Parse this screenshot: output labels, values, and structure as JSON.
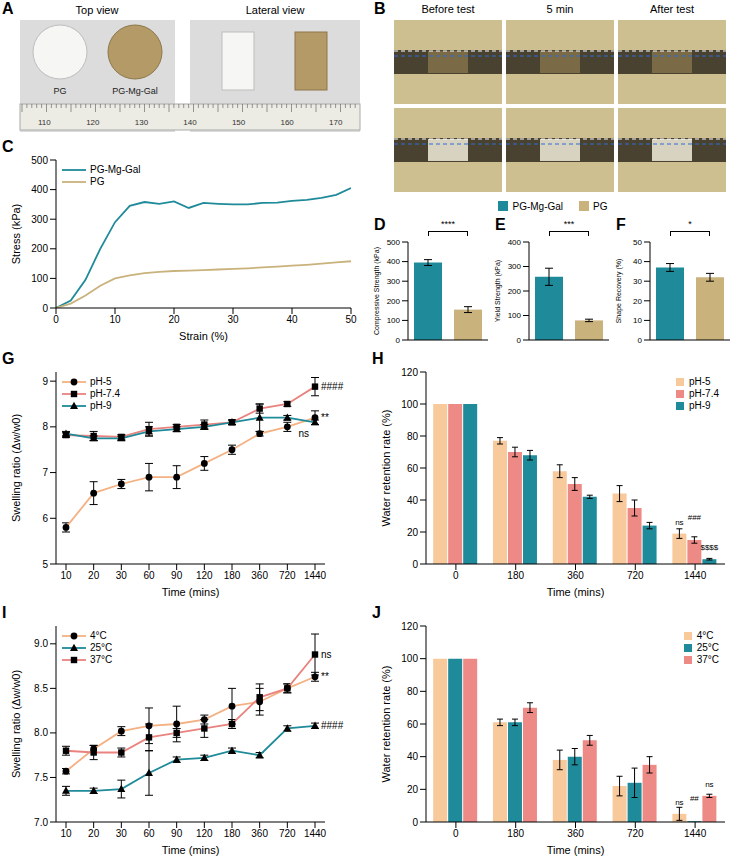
{
  "figure": {
    "photo_A": {
      "panel": "A",
      "views": [
        "Top view",
        "Lateral view"
      ],
      "samples": [
        "PG",
        "PG-Mg-Gal"
      ],
      "ruler": [
        110,
        120,
        130,
        140,
        150,
        160,
        170
      ]
    },
    "photo_B": {
      "panel": "B",
      "columns": [
        "Before test",
        "5 min",
        "After test"
      ]
    },
    "legend_entries": [
      {
        "name": "PG-Mg-Gal",
        "color": "#1f8a99"
      },
      {
        "name": "PG",
        "color": "#c9b27c"
      }
    ]
  },
  "chart_data": [
    {
      "panel": "C",
      "type": "line",
      "x_label": "Strain (%)",
      "y_label": "Stress (kPa)",
      "x": [
        0,
        2.5,
        5,
        7.5,
        10,
        12.5,
        15,
        17.5,
        20,
        22.5,
        25,
        27.5,
        30,
        32.5,
        35,
        37.5,
        40,
        42.5,
        45,
        47.5,
        50
      ],
      "series": [
        {
          "name": "PG-Mg-Gal",
          "color": "#1f8a99",
          "values": [
            0,
            25,
            95,
            200,
            290,
            345,
            358,
            352,
            360,
            338,
            355,
            352,
            350,
            350,
            355,
            356,
            362,
            365,
            372,
            382,
            405
          ]
        },
        {
          "name": "PG",
          "color": "#c9b27c",
          "values": [
            0,
            15,
            42,
            75,
            100,
            110,
            118,
            122,
            125,
            126,
            128,
            130,
            132,
            134,
            137,
            140,
            143,
            146,
            150,
            154,
            158
          ]
        }
      ],
      "xlim": [
        0,
        50
      ],
      "xticks": [
        0,
        10,
        20,
        30,
        40,
        50
      ],
      "ylim": [
        0,
        500
      ],
      "yticks": [
        0,
        100,
        200,
        300,
        400,
        500
      ],
      "legend": "upper left"
    },
    {
      "panel": "D",
      "type": "bar",
      "y_label": "Compressive Strength (kPa)",
      "categories": [
        null,
        null
      ],
      "values": [
        395,
        155
      ],
      "errors": [
        15,
        15
      ],
      "colors": [
        "#1f8a99",
        "#c9b27c"
      ],
      "ylim": [
        0,
        500
      ],
      "yticks": [
        0,
        100,
        200,
        300,
        400,
        500
      ],
      "tick_labels": "y",
      "annotations": [
        {
          "text": "****"
        }
      ]
    },
    {
      "panel": "E",
      "type": "bar",
      "y_label": "Yield Strength (kPa)",
      "categories": [
        null,
        null
      ],
      "values": [
        258,
        80
      ],
      "errors": [
        35,
        5
      ],
      "colors": [
        "#1f8a99",
        "#c9b27c"
      ],
      "ylim": [
        0,
        400
      ],
      "yticks": [
        0,
        100,
        200,
        300,
        400
      ],
      "tick_labels": "y",
      "annotations": [
        {
          "text": "***"
        }
      ]
    },
    {
      "panel": "F",
      "type": "bar",
      "y_label": "Shape Recovery (%)",
      "categories": [
        null,
        null
      ],
      "values": [
        37,
        32
      ],
      "errors": [
        2,
        2
      ],
      "colors": [
        "#1f8a99",
        "#c9b27c"
      ],
      "ylim": [
        0,
        50
      ],
      "yticks": [
        0,
        10,
        20,
        30,
        40,
        50
      ],
      "tick_labels": "y",
      "annotations": [
        {
          "text": "*"
        }
      ]
    },
    {
      "panel": "G",
      "type": "line",
      "x_label": "Time (mins)",
      "y_label": "Swelling ratio (Δw/w0)",
      "categories": [
        10,
        20,
        30,
        60,
        90,
        120,
        180,
        360,
        720,
        1440
      ],
      "series": [
        {
          "name": "pH-5",
          "color": "#f4b183",
          "marker": "circle",
          "values": [
            5.8,
            6.55,
            6.75,
            6.9,
            6.9,
            7.2,
            7.5,
            7.85,
            8.0,
            8.2
          ],
          "errors": [
            0.1,
            0.25,
            0.1,
            0.3,
            0.25,
            0.15,
            0.1,
            0.05,
            0.1,
            0.15
          ]
        },
        {
          "name": "pH-7.4",
          "color": "#e9837f",
          "marker": "square",
          "values": [
            7.82,
            7.8,
            7.78,
            7.95,
            8.0,
            8.05,
            8.1,
            8.4,
            8.5,
            8.88
          ],
          "errors": [
            0.05,
            0.1,
            0.05,
            0.15,
            0.05,
            0.1,
            0.05,
            0.1,
            0.05,
            0.2
          ]
        },
        {
          "name": "pH-9",
          "color": "#1f8a99",
          "marker": "triangle",
          "values": [
            7.85,
            7.75,
            7.75,
            7.9,
            7.95,
            8.0,
            8.1,
            8.2,
            8.2,
            8.1
          ],
          "errors": [
            0.05,
            0.05,
            0.05,
            0.1,
            0.05,
            0.05,
            0.05,
            0.3,
            0.05,
            0.05
          ]
        }
      ],
      "ylim": [
        5,
        9.2
      ],
      "yticks": [
        5,
        6,
        7,
        8,
        9
      ],
      "legend": "upper left",
      "annotations": [
        {
          "series": "pH-7.4",
          "text": "####"
        },
        {
          "series": "pH-5",
          "text": "**"
        },
        {
          "series": "pH-9",
          "text": "ns"
        }
      ]
    },
    {
      "panel": "H",
      "type": "bar",
      "x_label": "Time (mins)",
      "y_label": "Water retention rate (%)",
      "categories": [
        0,
        180,
        360,
        720,
        1440
      ],
      "series": [
        {
          "name": "pH-5",
          "color": "#f8c99b",
          "values": [
            100,
            77,
            58,
            44,
            19
          ],
          "errors": [
            0,
            2,
            4,
            5,
            3
          ]
        },
        {
          "name": "pH-7.4",
          "color": "#ee8a86",
          "values": [
            100,
            70,
            50,
            35,
            15
          ],
          "errors": [
            0,
            3,
            4,
            5,
            2
          ]
        },
        {
          "name": "pH-9",
          "color": "#1f8a99",
          "values": [
            100,
            68,
            42,
            24,
            3
          ],
          "errors": [
            0,
            3,
            1,
            2,
            0.5
          ]
        }
      ],
      "ylim": [
        0,
        120
      ],
      "yticks": [
        0,
        20,
        40,
        60,
        80,
        100,
        120
      ],
      "legend": "upper right",
      "annotations": [
        {
          "series": "pH-5",
          "category": 1440,
          "text": "ns"
        },
        {
          "series": "pH-7.4",
          "category": 1440,
          "text": "###"
        },
        {
          "series": "pH-9",
          "category": 1440,
          "text": "$$$$"
        }
      ]
    },
    {
      "panel": "I",
      "type": "line",
      "x_label": "Time (mins)",
      "y_label": "Swelling ratio (Δw/w0)",
      "categories": [
        10,
        20,
        30,
        60,
        90,
        120,
        180,
        360,
        720,
        1440
      ],
      "series": [
        {
          "name": "4°C",
          "color": "#f4b183",
          "marker": "circle",
          "values": [
            7.57,
            7.82,
            8.02,
            8.08,
            8.1,
            8.15,
            8.3,
            8.35,
            8.5,
            8.63
          ],
          "errors": [
            0.03,
            0.04,
            0.05,
            0.2,
            0.2,
            0.05,
            0.2,
            0.15,
            0.05,
            0.05
          ]
        },
        {
          "name": "25°C",
          "color": "#1f8a99",
          "marker": "triangle",
          "values": [
            7.35,
            7.35,
            7.37,
            7.55,
            7.7,
            7.72,
            7.8,
            7.75,
            8.05,
            8.08
          ],
          "errors": [
            0.05,
            0.03,
            0.1,
            0.25,
            0.03,
            0.03,
            0.03,
            0.03,
            0.03,
            0.03
          ]
        },
        {
          "name": "37°C",
          "color": "#e9837f",
          "marker": "square",
          "values": [
            7.8,
            7.78,
            7.78,
            7.95,
            8.0,
            8.05,
            8.1,
            8.4,
            8.5,
            8.88
          ],
          "errors": [
            0.05,
            0.08,
            0.05,
            0.15,
            0.05,
            0.1,
            0.05,
            0.15,
            0.05,
            0.23
          ]
        }
      ],
      "ylim": [
        7,
        9.2
      ],
      "yticks": [
        {
          "value": 7,
          "label": "7.0"
        },
        7.5,
        {
          "value": 8,
          "label": "8.0"
        },
        8.5,
        {
          "value": 9,
          "label": "9.0"
        }
      ],
      "legend": "upper left",
      "annotations": [
        {
          "series": "37°C",
          "text": "ns"
        },
        {
          "series": "4°C",
          "text": "**"
        },
        {
          "series": "25°C",
          "text": "####"
        }
      ]
    },
    {
      "panel": "J",
      "type": "bar",
      "x_label": "Time (mins)",
      "y_label": "Water retention rate (%)",
      "categories": [
        0,
        180,
        360,
        720,
        1440
      ],
      "series": [
        {
          "name": "4°C",
          "color": "#f8c99b",
          "values": [
            100,
            61,
            38,
            22,
            5
          ],
          "errors": [
            0,
            2,
            6,
            6,
            4
          ]
        },
        {
          "name": "25°C",
          "color": "#1f8a99",
          "values": [
            100,
            61,
            40,
            24,
            0.5
          ],
          "errors": [
            0,
            2,
            5,
            9,
            0
          ]
        },
        {
          "name": "37°C",
          "color": "#ee8a86",
          "values": [
            100,
            70,
            50,
            35,
            16
          ],
          "errors": [
            0,
            3,
            3,
            5,
            1
          ]
        }
      ],
      "ylim": [
        0,
        120
      ],
      "yticks": [
        0,
        20,
        40,
        60,
        80,
        100,
        120
      ],
      "legend": "upper right",
      "annotations": [
        {
          "series": "4°C",
          "category": 1440,
          "text": "ns"
        },
        {
          "series": "25°C",
          "category": 1440,
          "text": "##"
        },
        {
          "series": "37°C",
          "category": 1440,
          "text": "ns"
        }
      ]
    }
  ]
}
